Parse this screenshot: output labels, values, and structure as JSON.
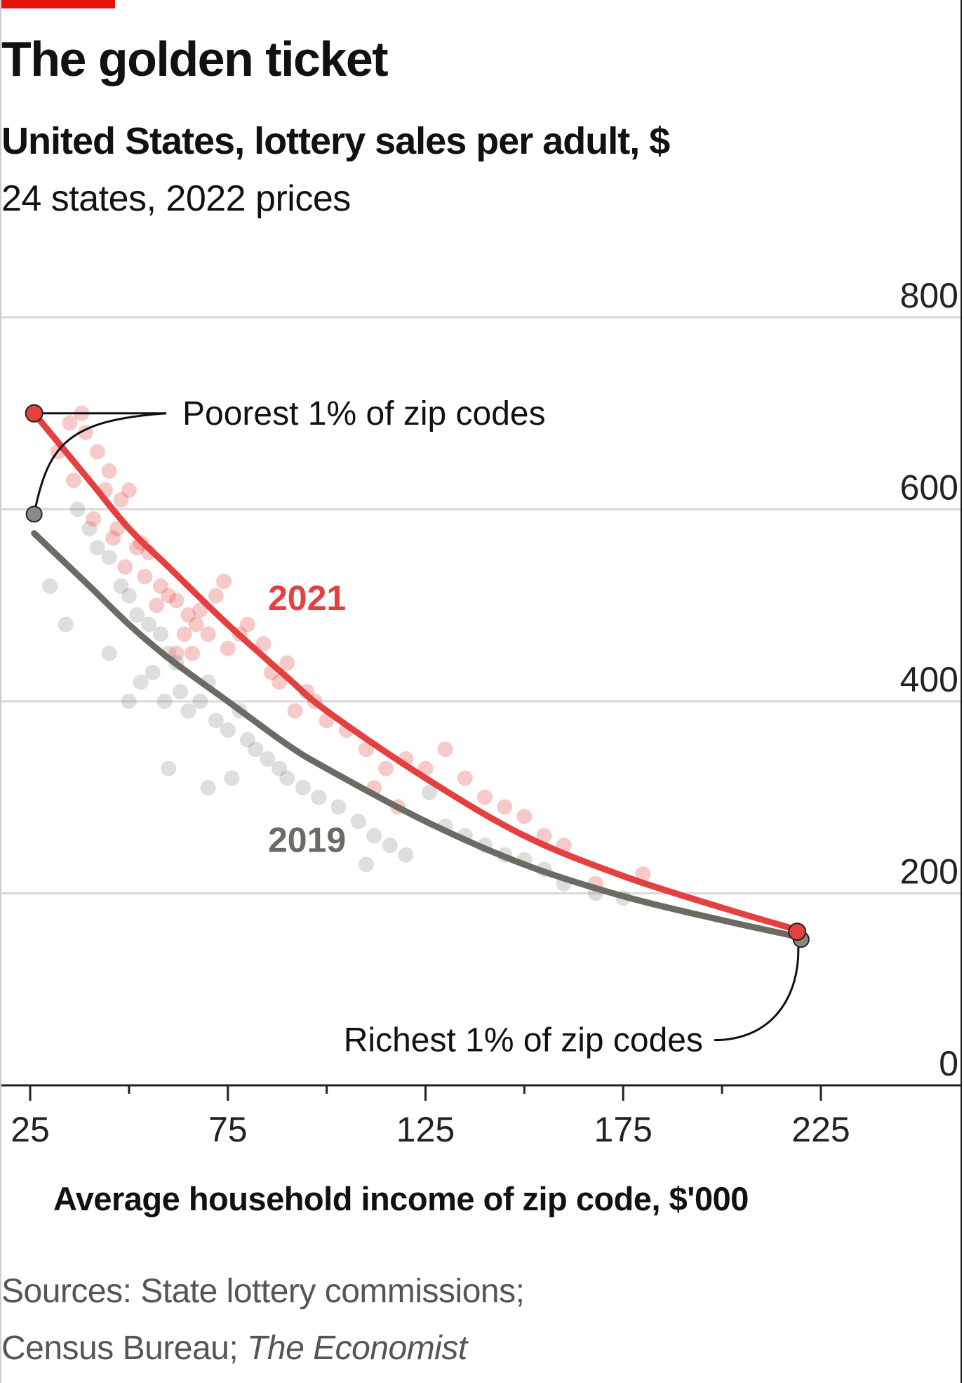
{
  "title": "The golden ticket",
  "subtitle": "United States, lottery sales per adult, $",
  "subtitle2": "24 states, 2022 prices",
  "source_line1": "Sources: State lottery commissions;",
  "source_line2_plain": "Census Bureau; ",
  "source_line2_italic": "The Economist",
  "colors": {
    "accent": "#e3120b",
    "series_2021": "#e4403f",
    "series_2019": "#6b6b63",
    "grid": "#d9d9d9"
  },
  "chart_data": {
    "type": "scatter",
    "title": "The golden ticket",
    "xlabel": "Average household income of zip code, $'000",
    "ylabel": "Lottery sales per adult, $",
    "xlim": [
      20,
      255
    ],
    "ylim": [
      0,
      800
    ],
    "xticks": [
      25,
      75,
      125,
      175,
      225
    ],
    "xticks_minor": [
      50,
      100,
      150,
      200
    ],
    "yticks": [
      0,
      200,
      400,
      600,
      800
    ],
    "grid": true,
    "series": [
      {
        "name": "2021",
        "label": "2021",
        "color": "#e4403f",
        "points": [
          [
            38,
            700
          ],
          [
            39,
            680
          ],
          [
            35,
            690
          ],
          [
            42,
            660
          ],
          [
            45,
            640
          ],
          [
            44,
            620
          ],
          [
            48,
            610
          ],
          [
            50,
            620
          ],
          [
            32,
            660
          ],
          [
            36,
            630
          ],
          [
            41,
            590
          ],
          [
            46,
            570
          ],
          [
            53,
            565
          ],
          [
            55,
            555
          ],
          [
            47,
            580
          ],
          [
            52,
            560
          ],
          [
            49,
            540
          ],
          [
            54,
            530
          ],
          [
            58,
            520
          ],
          [
            60,
            510
          ],
          [
            57,
            500
          ],
          [
            62,
            505
          ],
          [
            65,
            490
          ],
          [
            64,
            470
          ],
          [
            67,
            480
          ],
          [
            68,
            495
          ],
          [
            72,
            510
          ],
          [
            74,
            525
          ],
          [
            70,
            470
          ],
          [
            66,
            450
          ],
          [
            62,
            450
          ],
          [
            75,
            455
          ],
          [
            78,
            470
          ],
          [
            80,
            480
          ],
          [
            84,
            460
          ],
          [
            86,
            430
          ],
          [
            88,
            420
          ],
          [
            90,
            440
          ],
          [
            95,
            410
          ],
          [
            97,
            400
          ],
          [
            92,
            390
          ],
          [
            100,
            380
          ],
          [
            105,
            370
          ],
          [
            110,
            350
          ],
          [
            115,
            330
          ],
          [
            112,
            310
          ],
          [
            118,
            290
          ],
          [
            120,
            340
          ],
          [
            125,
            330
          ],
          [
            130,
            350
          ],
          [
            135,
            320
          ],
          [
            140,
            300
          ],
          [
            145,
            290
          ],
          [
            150,
            280
          ],
          [
            155,
            260
          ],
          [
            160,
            250
          ],
          [
            180,
            220
          ],
          [
            168,
            210
          ]
        ],
        "fit": [
          [
            26,
            700
          ],
          [
            40,
            630
          ],
          [
            50,
            580
          ],
          [
            60,
            540
          ],
          [
            75,
            480
          ],
          [
            90,
            425
          ],
          [
            100,
            390
          ],
          [
            125,
            320
          ],
          [
            150,
            260
          ],
          [
            175,
            218
          ],
          [
            200,
            185
          ],
          [
            219,
            162
          ]
        ]
      },
      {
        "name": "2019",
        "label": "2019",
        "color": "#6b6b63",
        "points": [
          [
            37,
            600
          ],
          [
            40,
            580
          ],
          [
            42,
            560
          ],
          [
            45,
            550
          ],
          [
            48,
            520
          ],
          [
            50,
            510
          ],
          [
            52,
            490
          ],
          [
            55,
            480
          ],
          [
            58,
            470
          ],
          [
            60,
            450
          ],
          [
            62,
            440
          ],
          [
            56,
            430
          ],
          [
            53,
            420
          ],
          [
            59,
            400
          ],
          [
            63,
            410
          ],
          [
            65,
            390
          ],
          [
            68,
            400
          ],
          [
            70,
            420
          ],
          [
            72,
            380
          ],
          [
            75,
            370
          ],
          [
            78,
            390
          ],
          [
            80,
            360
          ],
          [
            82,
            350
          ],
          [
            85,
            340
          ],
          [
            88,
            330
          ],
          [
            90,
            320
          ],
          [
            94,
            310
          ],
          [
            98,
            300
          ],
          [
            103,
            290
          ],
          [
            108,
            275
          ],
          [
            112,
            260
          ],
          [
            116,
            250
          ],
          [
            120,
            240
          ],
          [
            126,
            305
          ],
          [
            130,
            270
          ],
          [
            135,
            260
          ],
          [
            140,
            250
          ],
          [
            145,
            240
          ],
          [
            150,
            235
          ],
          [
            155,
            225
          ],
          [
            160,
            210
          ],
          [
            168,
            200
          ],
          [
            175,
            195
          ],
          [
            30,
            520
          ],
          [
            34,
            480
          ],
          [
            45,
            450
          ],
          [
            50,
            400
          ],
          [
            60,
            330
          ],
          [
            70,
            310
          ],
          [
            76,
            320
          ],
          [
            110,
            230
          ]
        ],
        "fit": [
          [
            26,
            575
          ],
          [
            40,
            520
          ],
          [
            50,
            480
          ],
          [
            60,
            445
          ],
          [
            75,
            400
          ],
          [
            90,
            355
          ],
          [
            100,
            330
          ],
          [
            125,
            275
          ],
          [
            150,
            230
          ],
          [
            175,
            197
          ],
          [
            200,
            172
          ],
          [
            219,
            155
          ]
        ]
      }
    ],
    "annotations": {
      "poorest": "Poorest 1% of zip codes",
      "richest": "Richest 1% of zip codes",
      "poorest_2021": [
        26,
        700
      ],
      "poorest_2019": [
        26,
        595
      ],
      "richest_2021": [
        219,
        160
      ],
      "richest_2019": [
        220,
        152
      ]
    }
  }
}
